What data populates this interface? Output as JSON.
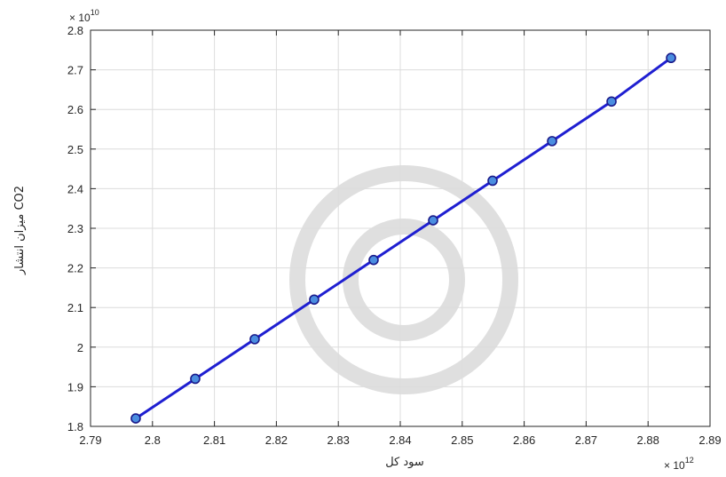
{
  "chart_data": {
    "type": "line",
    "title": "",
    "xlabel": "سود کل",
    "ylabel": "میزان انتشار CO2",
    "x_exponent_text": "× 10",
    "x_exponent_power": "12",
    "y_exponent_text": "× 10",
    "y_exponent_power": "10",
    "xlim": [
      2.79,
      2.89
    ],
    "ylim": [
      1.8,
      2.8
    ],
    "x_ticks": [
      "2.79",
      "2.8",
      "2.81",
      "2.82",
      "2.83",
      "2.84",
      "2.85",
      "2.86",
      "2.87",
      "2.88",
      "2.89"
    ],
    "y_ticks": [
      "1.8",
      "1.9",
      "2",
      "2.1",
      "2.2",
      "2.3",
      "2.4",
      "2.5",
      "2.6",
      "2.7",
      "2.8"
    ],
    "grid": true,
    "line_color": "#1f1fd1",
    "marker_color": "#4a8de0",
    "series": [
      {
        "x": [
          2.7973,
          2.8069,
          2.8165,
          2.8261,
          2.8357,
          2.8453,
          2.8549,
          2.8645,
          2.8741,
          2.8837
        ],
        "y": [
          1.82,
          1.92,
          2.02,
          2.12,
          2.22,
          2.32,
          2.42,
          2.52,
          2.62,
          2.73
        ]
      }
    ]
  }
}
